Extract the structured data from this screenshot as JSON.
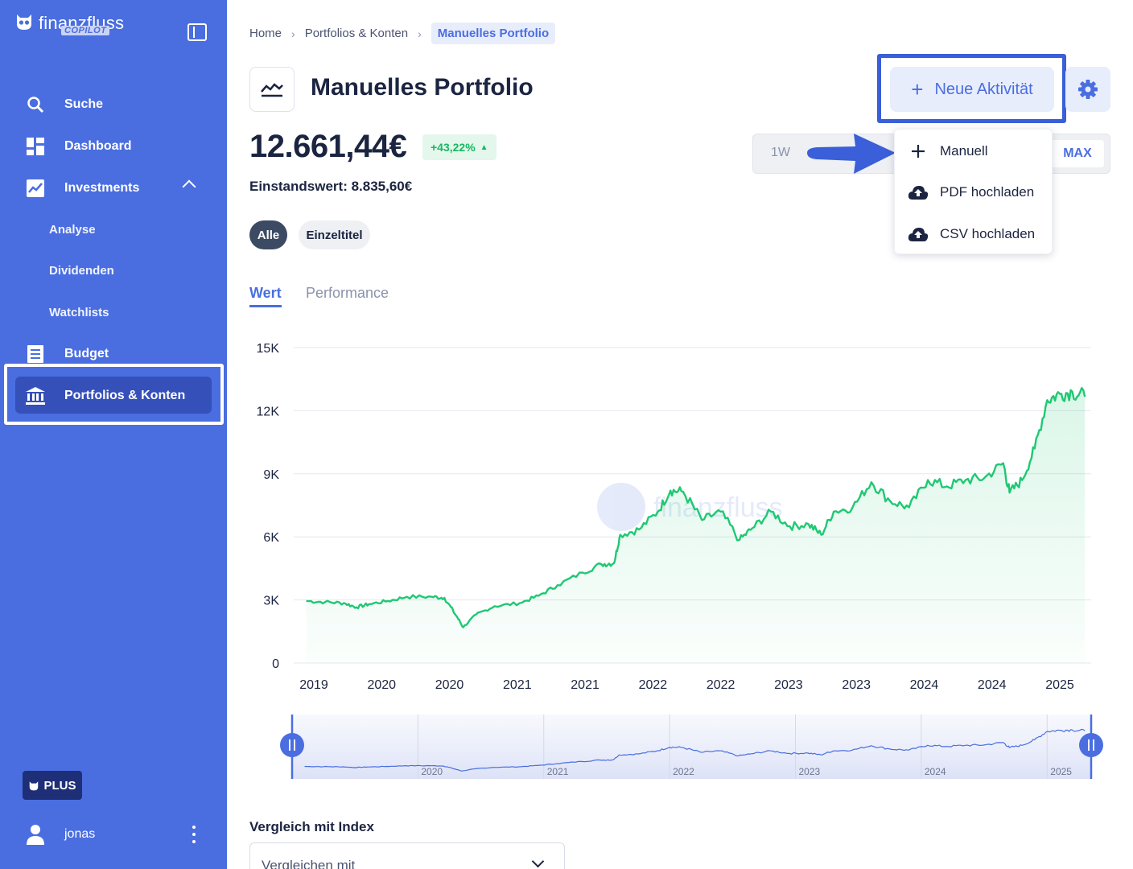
{
  "app": {
    "name": "finanzfluss",
    "badge": "COPILOT"
  },
  "sidebar": {
    "items": [
      {
        "label": "Suche",
        "icon": "search-icon"
      },
      {
        "label": "Dashboard",
        "icon": "dashboard-icon"
      },
      {
        "label": "Investments",
        "icon": "chart-icon"
      },
      {
        "label": "Budget",
        "icon": "list-icon"
      },
      {
        "label": "Portfolios & Konten",
        "icon": "bank-icon"
      }
    ],
    "sub_items": [
      "Analyse",
      "Dividenden",
      "Watchlists"
    ],
    "plus_label": "PLUS",
    "user": "jonas"
  },
  "breadcrumb": [
    "Home",
    "Portfolios & Konten",
    "Manuelles Portfolio"
  ],
  "page": {
    "title": "Manuelles Portfolio",
    "new_activity": "Neue Aktivität",
    "value": "12.661,44€",
    "change": "+43,22%",
    "cost_basis": "Einstandswert: 8.835,60€"
  },
  "range": {
    "left": "1W",
    "active": "MAX"
  },
  "dropdown": [
    {
      "label": "Manuell",
      "icon": "plus-icon"
    },
    {
      "label": "PDF hochladen",
      "icon": "cloud-upload-icon"
    },
    {
      "label": "CSV hochladen",
      "icon": "cloud-upload-icon"
    }
  ],
  "filters": [
    "Alle",
    "Einzeltitel"
  ],
  "tabs": [
    "Wert",
    "Performance"
  ],
  "watermark": "finanzfluss",
  "comparison": {
    "label": "Vergleich mit Index",
    "placeholder": "Vergleichen mit"
  },
  "colors": {
    "accent": "#4a6ee0",
    "sidebar": "#4a6ee0",
    "line": "#1fc873",
    "positive": "#16b862"
  },
  "chart_data": {
    "type": "area",
    "title": "",
    "xlabel": "",
    "ylabel": "",
    "ylim": [
      0,
      15000
    ],
    "y_ticks": [
      "0",
      "3K",
      "6K",
      "9K",
      "12K",
      "15K"
    ],
    "x_ticks": [
      "2019",
      "2020",
      "2020",
      "2021",
      "2021",
      "2022",
      "2022",
      "2023",
      "2023",
      "2024",
      "2024",
      "2025"
    ],
    "series": [
      {
        "values": [
          [
            2019.0,
            2950
          ],
          [
            2019.15,
            2900
          ],
          [
            2019.3,
            2850
          ],
          [
            2019.4,
            2650
          ],
          [
            2019.5,
            2800
          ],
          [
            2019.65,
            2950
          ],
          [
            2019.8,
            3150
          ],
          [
            2020.0,
            3150
          ],
          [
            2020.1,
            3100
          ],
          [
            2020.2,
            2200
          ],
          [
            2020.25,
            1700
          ],
          [
            2020.35,
            2300
          ],
          [
            2020.5,
            2700
          ],
          [
            2020.7,
            2850
          ],
          [
            2020.85,
            3200
          ],
          [
            2021.0,
            3700
          ],
          [
            2021.2,
            4300
          ],
          [
            2021.35,
            4700
          ],
          [
            2021.45,
            4750
          ],
          [
            2021.5,
            6100
          ],
          [
            2021.65,
            6350
          ],
          [
            2021.8,
            7200
          ],
          [
            2021.9,
            8200
          ],
          [
            2022.0,
            8150
          ],
          [
            2022.15,
            6800
          ],
          [
            2022.3,
            7200
          ],
          [
            2022.45,
            5850
          ],
          [
            2022.55,
            6400
          ],
          [
            2022.7,
            7200
          ],
          [
            2022.85,
            6500
          ],
          [
            2023.0,
            6600
          ],
          [
            2023.1,
            6100
          ],
          [
            2023.2,
            7200
          ],
          [
            2023.35,
            7400
          ],
          [
            2023.5,
            8600
          ],
          [
            2023.65,
            7700
          ],
          [
            2023.8,
            7400
          ],
          [
            2023.95,
            8700
          ],
          [
            2024.1,
            8400
          ],
          [
            2024.25,
            8700
          ],
          [
            2024.4,
            8800
          ],
          [
            2024.55,
            9500
          ],
          [
            2024.6,
            8100
          ],
          [
            2024.7,
            8700
          ],
          [
            2024.8,
            10200
          ],
          [
            2024.9,
            12500
          ],
          [
            2025.0,
            12800
          ],
          [
            2025.1,
            12900
          ],
          [
            2025.2,
            12661
          ]
        ]
      }
    ],
    "navigator_ticks": [
      "2020",
      "2021",
      "2022",
      "2023",
      "2024",
      "2025"
    ],
    "grid": true
  }
}
